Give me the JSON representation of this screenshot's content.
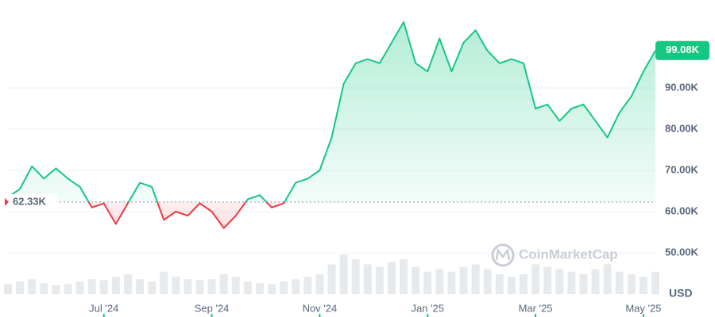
{
  "chart_data": {
    "type": "line",
    "categories": [
      null,
      null,
      null,
      null,
      null,
      null,
      null,
      null,
      "Jul '24",
      null,
      null,
      null,
      null,
      null,
      null,
      null,
      null,
      "Sep '24",
      null,
      null,
      null,
      null,
      null,
      null,
      null,
      null,
      "Nov '24",
      null,
      null,
      null,
      null,
      null,
      null,
      null,
      null,
      "Jan '25",
      null,
      null,
      null,
      null,
      null,
      null,
      null,
      null,
      "Mar '25",
      null,
      null,
      null,
      null,
      null,
      null,
      null,
      null,
      "May '25",
      null
    ],
    "values": [
      63.5,
      65.5,
      71,
      68,
      70.5,
      68,
      66,
      61,
      62,
      57,
      62,
      67,
      66,
      58,
      60,
      59,
      62,
      60,
      56,
      59,
      63,
      64,
      61,
      62,
      67,
      68,
      70,
      78,
      91,
      96,
      97,
      96,
      101,
      106,
      96,
      94,
      102,
      94,
      101,
      104,
      99,
      96,
      97,
      96,
      85,
      86,
      82,
      85,
      86,
      82,
      78,
      84,
      88,
      94,
      99.08
    ],
    "up_color": "#16c784",
    "down_color": "#ea3943",
    "baseline": {
      "value": 62.33,
      "label": "62.33K"
    },
    "current": {
      "value": 99.08,
      "label": "99.08K"
    },
    "volume": {
      "color": "#dde1e6",
      "values": [
        20,
        25,
        30,
        22,
        18,
        20,
        25,
        30,
        28,
        35,
        40,
        30,
        25,
        45,
        35,
        30,
        28,
        30,
        40,
        35,
        25,
        22,
        20,
        25,
        30,
        35,
        40,
        60,
        80,
        70,
        60,
        55,
        65,
        70,
        55,
        45,
        50,
        45,
        55,
        60,
        50,
        40,
        35,
        40,
        60,
        55,
        50,
        45,
        40,
        50,
        60,
        45,
        40,
        35,
        45
      ]
    },
    "ylim": [
      40,
      110
    ],
    "yticks": [
      {
        "value": 50,
        "label": "50.00K"
      },
      {
        "value": 60,
        "label": "60.00K"
      },
      {
        "value": 70,
        "label": "70.00K"
      },
      {
        "value": 80,
        "label": "80.00K"
      },
      {
        "value": 90,
        "label": "90.00K"
      }
    ],
    "y_unit": "USD",
    "watermark": "CoinMarketCap",
    "grid": true
  }
}
